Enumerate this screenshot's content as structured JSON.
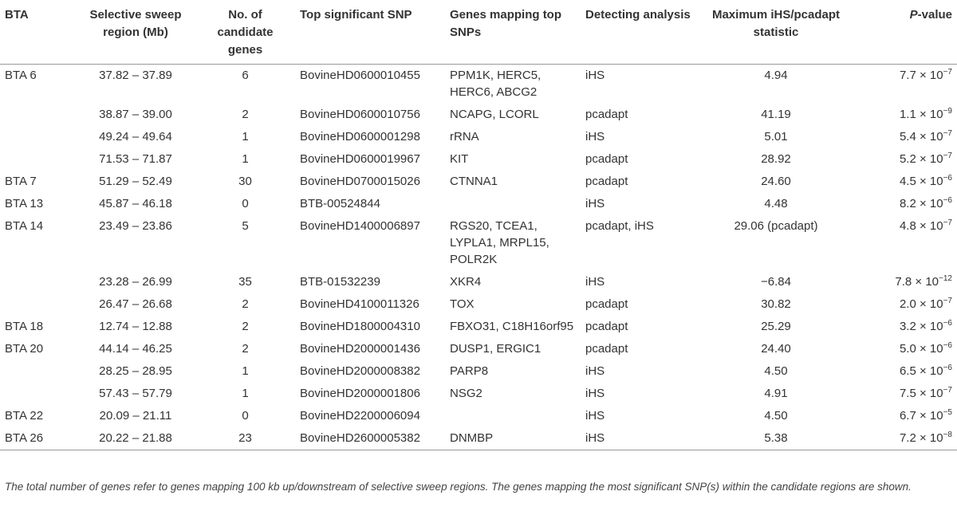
{
  "table": {
    "header": [
      "BTA",
      "Selective sweep region (Mb)",
      "No. of candidate genes",
      "Top significant SNP",
      "Genes mapping top SNPs",
      "Detecting analysis",
      "Maximum iHS/pcadapt statistic",
      {
        "italic": "P",
        "rest": "-value"
      }
    ],
    "rows": [
      [
        "BTA 6",
        "37.82 – 37.89",
        "6",
        "BovineHD0600010455",
        "PPM1K, HERC5, HERC6, ABCG2",
        "iHS",
        "4.94",
        {
          "base": "7.7 × 10",
          "exp": "−7"
        }
      ],
      [
        null,
        "38.87 – 39.00",
        "2",
        "BovineHD0600010756",
        "NCAPG, LCORL",
        "pcadapt",
        "41.19",
        {
          "base": "1.1 × 10",
          "exp": "−9"
        }
      ],
      [
        null,
        "49.24 – 49.64",
        "1",
        "BovineHD0600001298",
        "rRNA",
        "iHS",
        "5.01",
        {
          "base": "5.4 × 10",
          "exp": "−7"
        }
      ],
      [
        null,
        "71.53 – 71.87",
        "1",
        "BovineHD0600019967",
        "KIT",
        "pcadapt",
        "28.92",
        {
          "base": "5.2 × 10",
          "exp": "−7"
        }
      ],
      [
        "BTA 7",
        "51.29 – 52.49",
        "30",
        "BovineHD0700015026",
        "CTNNA1",
        "pcadapt",
        "24.60",
        {
          "base": "4.5 × 10",
          "exp": "−6"
        }
      ],
      [
        "BTA 13",
        "45.87 – 46.18",
        "0",
        "BTB-00524844",
        null,
        "iHS",
        "4.48",
        {
          "base": "8.2 × 10",
          "exp": "−6"
        }
      ],
      [
        "BTA 14",
        "23.49 – 23.86",
        "5",
        "BovineHD1400006897",
        "RGS20, TCEA1, LYPLA1, MRPL15, POLR2K",
        "pcadapt, iHS",
        "29.06 (pcadapt)",
        {
          "base": "4.8 × 10",
          "exp": "−7"
        }
      ],
      [
        null,
        "23.28 – 26.99",
        "35",
        "BTB-01532239",
        "XKR4",
        "iHS",
        "−6.84",
        {
          "base": "7.8 × 10",
          "exp": "−12"
        }
      ],
      [
        null,
        "26.47 – 26.68",
        "2",
        "BovineHD4100011326",
        "TOX",
        "pcadapt",
        "30.82",
        {
          "base": "2.0 × 10",
          "exp": "−7"
        }
      ],
      [
        "BTA 18",
        "12.74 – 12.88",
        "2",
        "BovineHD1800004310",
        "FBXO31, C18H16orf95",
        "pcadapt",
        "25.29",
        {
          "base": "3.2 × 10",
          "exp": "−6"
        }
      ],
      [
        "BTA 20",
        "44.14 – 46.25",
        "2",
        "BovineHD2000001436",
        "DUSP1, ERGIC1",
        "pcadapt",
        "24.40",
        {
          "base": "5.0 × 10",
          "exp": "−6"
        }
      ],
      [
        null,
        "28.25 – 28.95",
        "1",
        "BovineHD2000008382",
        "PARP8",
        "iHS",
        "4.50",
        {
          "base": "6.5 × 10",
          "exp": "−6"
        }
      ],
      [
        null,
        "57.43 – 57.79",
        "1",
        "BovineHD2000001806",
        "NSG2",
        "iHS",
        "4.91",
        {
          "base": "7.5 × 10",
          "exp": "−7"
        }
      ],
      [
        "BTA 22",
        "20.09 – 21.11",
        "0",
        "BovineHD2200006094",
        null,
        "iHS",
        "4.50",
        {
          "base": "6.7 × 10",
          "exp": "−5"
        }
      ],
      [
        "BTA 26",
        "20.22 – 21.88",
        "23",
        "BovineHD2600005382",
        "DNMBP",
        "iHS",
        "5.38",
        {
          "base": "7.2 × 10",
          "exp": "−8"
        }
      ]
    ],
    "footnote": "The total number of genes refer to genes mapping 100 kb up/downstream of selective sweep regions. The genes mapping the most significant SNP(s) within the candidate regions are shown."
  }
}
